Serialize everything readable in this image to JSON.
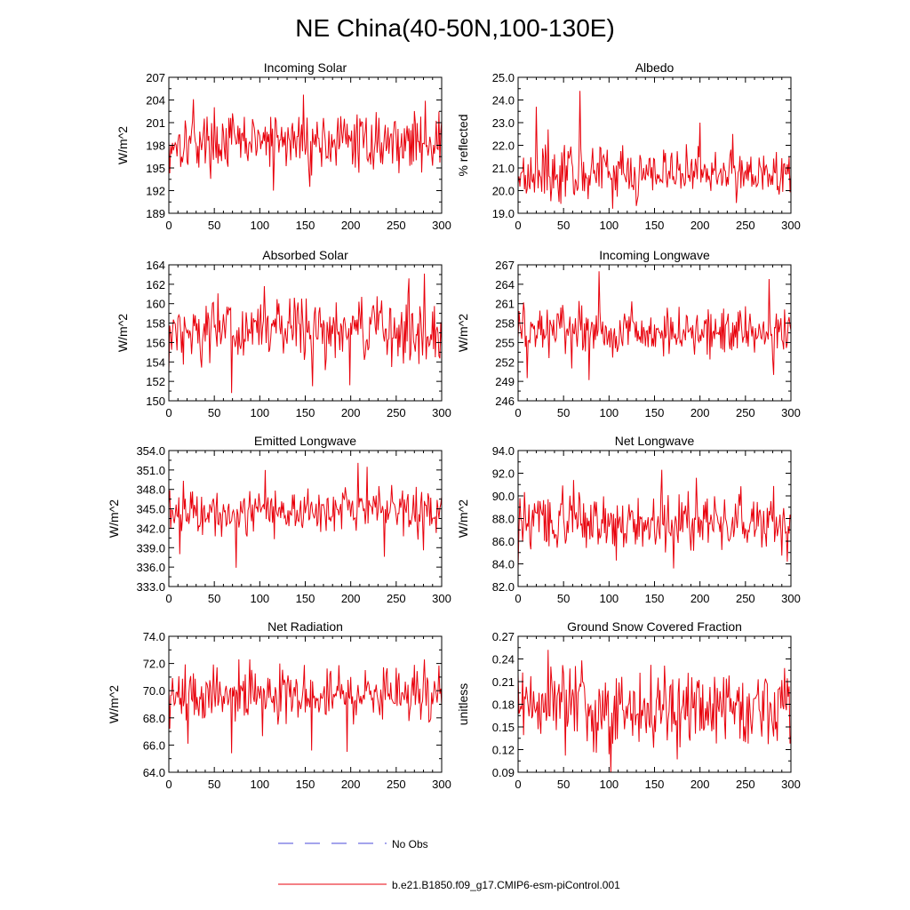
{
  "title": "NE China(40-50N,100-130E)",
  "legend": {
    "obs_label": "No Obs",
    "model_label": "b.e21.B1850.f09_g17.CMIP6-esm-piControl.001",
    "obs_color": "#4a4ad8",
    "model_color": "#e8000b"
  },
  "chart_data": [
    {
      "type": "line",
      "title": "Incoming Solar",
      "ylabel": "W/m^2",
      "xlim": [
        0,
        300
      ],
      "ylim": [
        189,
        207
      ],
      "xticks": [
        0,
        50,
        100,
        150,
        200,
        250,
        300
      ],
      "yticks": [
        189,
        192,
        195,
        198,
        201,
        204,
        207
      ],
      "ydec": 0,
      "series": [
        {
          "name": "b.e21.B1850.f09_g17.CMIP6-esm-piControl.001",
          "summary": {
            "mean": 198.5,
            "sd": 1.9,
            "min": 192.0,
            "max": 204.7,
            "spikes": [
              [
                1,
                194.3
              ],
              [
                27,
                204.1
              ],
              [
                115,
                192.0
              ],
              [
                148,
                204.7
              ],
              [
                155,
                192.5
              ],
              [
                282,
                203.9
              ],
              [
                300,
                201.2
              ]
            ]
          }
        }
      ]
    },
    {
      "type": "line",
      "title": "Albedo",
      "ylabel": "% reflected",
      "xlim": [
        0,
        300
      ],
      "ylim": [
        19.0,
        25.0
      ],
      "xticks": [
        0,
        50,
        100,
        150,
        200,
        250,
        300
      ],
      "yticks": [
        19.0,
        20.0,
        21.0,
        22.0,
        23.0,
        24.0,
        25.0
      ],
      "ydec": 1,
      "series": [
        {
          "name": "b.e21.B1850.f09_g17.CMIP6-esm-piControl.001",
          "summary": {
            "mean": 20.8,
            "sd": 0.6,
            "min": 19.2,
            "max": 24.4,
            "spikes": [
              [
                20,
                23.7
              ],
              [
                33,
                22.7
              ],
              [
                45,
                19.5
              ],
              [
                68,
                24.4
              ],
              [
                104,
                19.2
              ],
              [
                200,
                23.0
              ],
              [
                236,
                22.5
              ]
            ]
          }
        }
      ]
    },
    {
      "type": "line",
      "title": "Absorbed Solar",
      "ylabel": "W/m^2",
      "xlim": [
        0,
        300
      ],
      "ylim": [
        150,
        164
      ],
      "xticks": [
        0,
        50,
        100,
        150,
        200,
        250,
        300
      ],
      "yticks": [
        150,
        152,
        154,
        156,
        158,
        160,
        162,
        164
      ],
      "ydec": 0,
      "series": [
        {
          "name": "b.e21.B1850.f09_g17.CMIP6-esm-piControl.001",
          "summary": {
            "mean": 157.3,
            "sd": 1.7,
            "min": 150.8,
            "max": 163.1,
            "spikes": [
              [
                0,
                153.0
              ],
              [
                69,
                150.8
              ],
              [
                105,
                161.8
              ],
              [
                158,
                151.5
              ],
              [
                199,
                151.6
              ],
              [
                264,
                162.6
              ],
              [
                281,
                163.1
              ]
            ]
          }
        }
      ]
    },
    {
      "type": "line",
      "title": "Incoming Longwave",
      "ylabel": "W/m^2",
      "xlim": [
        0,
        300
      ],
      "ylim": [
        246,
        267
      ],
      "xticks": [
        0,
        50,
        100,
        150,
        200,
        250,
        300
      ],
      "yticks": [
        246,
        249,
        252,
        255,
        258,
        261,
        264,
        267
      ],
      "ydec": 0,
      "series": [
        {
          "name": "b.e21.B1850.f09_g17.CMIP6-esm-piControl.001",
          "summary": {
            "mean": 256.8,
            "sd": 1.9,
            "min": 249.1,
            "max": 266.0,
            "spikes": [
              [
                6,
                261.2
              ],
              [
                10,
                249.5
              ],
              [
                59,
                251.0
              ],
              [
                78,
                249.2
              ],
              [
                89,
                266.0
              ],
              [
                276,
                264.8
              ],
              [
                281,
                250.0
              ]
            ]
          }
        }
      ]
    },
    {
      "type": "line",
      "title": "Emitted Longwave",
      "ylabel": "W/m^2",
      "xlim": [
        0,
        300
      ],
      "ylim": [
        333.0,
        354.0
      ],
      "xticks": [
        0,
        50,
        100,
        150,
        200,
        250,
        300
      ],
      "yticks": [
        333.0,
        336.0,
        339.0,
        342.0,
        345.0,
        348.0,
        351.0,
        354.0
      ],
      "ydec": 1,
      "series": [
        {
          "name": "b.e21.B1850.f09_g17.CMIP6-esm-piControl.001",
          "summary": {
            "mean": 344.8,
            "sd": 1.9,
            "min": 335.9,
            "max": 352.1,
            "spikes": [
              [
                12,
                338.0
              ],
              [
                74,
                335.9
              ],
              [
                106,
                351.0
              ],
              [
                208,
                352.1
              ],
              [
                218,
                351.5
              ],
              [
                237,
                337.6
              ],
              [
                280,
                338.6
              ]
            ]
          }
        }
      ]
    },
    {
      "type": "line",
      "title": "Net Longwave",
      "ylabel": "W/m^2",
      "xlim": [
        0,
        300
      ],
      "ylim": [
        82.0,
        94.0
      ],
      "xticks": [
        0,
        50,
        100,
        150,
        200,
        250,
        300
      ],
      "yticks": [
        82.0,
        84.0,
        86.0,
        88.0,
        90.0,
        92.0,
        94.0
      ],
      "ydec": 1,
      "series": [
        {
          "name": "b.e21.B1850.f09_g17.CMIP6-esm-piControl.001",
          "summary": {
            "mean": 87.7,
            "sd": 1.3,
            "min": 83.5,
            "max": 92.3,
            "spikes": [
              [
                0,
                83.5
              ],
              [
                61,
                91.4
              ],
              [
                108,
                84.3
              ],
              [
                158,
                92.3
              ],
              [
                171,
                83.6
              ],
              [
                196,
                91.6
              ],
              [
                296,
                84.2
              ]
            ]
          }
        }
      ]
    },
    {
      "type": "line",
      "title": "Net Radiation",
      "ylabel": "W/m^2",
      "xlim": [
        0,
        300
      ],
      "ylim": [
        64.0,
        74.0
      ],
      "xticks": [
        0,
        50,
        100,
        150,
        200,
        250,
        300
      ],
      "yticks": [
        64.0,
        66.0,
        68.0,
        70.0,
        72.0,
        74.0
      ],
      "ydec": 1,
      "series": [
        {
          "name": "b.e21.B1850.f09_g17.CMIP6-esm-piControl.001",
          "summary": {
            "mean": 69.6,
            "sd": 1.1,
            "min": 65.4,
            "max": 72.3,
            "spikes": [
              [
                21,
                66.1
              ],
              [
                69,
                65.4
              ],
              [
                89,
                72.3
              ],
              [
                157,
                65.6
              ],
              [
                196,
                65.5
              ],
              [
                270,
                71.9
              ],
              [
                286,
                67.7
              ]
            ]
          }
        }
      ]
    },
    {
      "type": "line",
      "title": "Ground Snow Covered Fraction",
      "ylabel": "unitless",
      "xlim": [
        0,
        300
      ],
      "ylim": [
        0.09,
        0.27
      ],
      "xticks": [
        0,
        50,
        100,
        150,
        200,
        250,
        300
      ],
      "yticks": [
        0.09,
        0.12,
        0.15,
        0.18,
        0.21,
        0.24,
        0.27
      ],
      "ydec": 2,
      "series": [
        {
          "name": "b.e21.B1850.f09_g17.CMIP6-esm-piControl.001",
          "summary": {
            "mean": 0.175,
            "sd": 0.026,
            "min": 0.09,
            "max": 0.252,
            "spikes": [
              [
                5,
                0.222
              ],
              [
                33,
                0.252
              ],
              [
                52,
                0.112
              ],
              [
                70,
                0.238
              ],
              [
                102,
                0.09
              ],
              [
                175,
                0.107
              ],
              [
                232,
                0.218
              ],
              [
                299,
                0.128
              ]
            ]
          }
        }
      ]
    }
  ]
}
